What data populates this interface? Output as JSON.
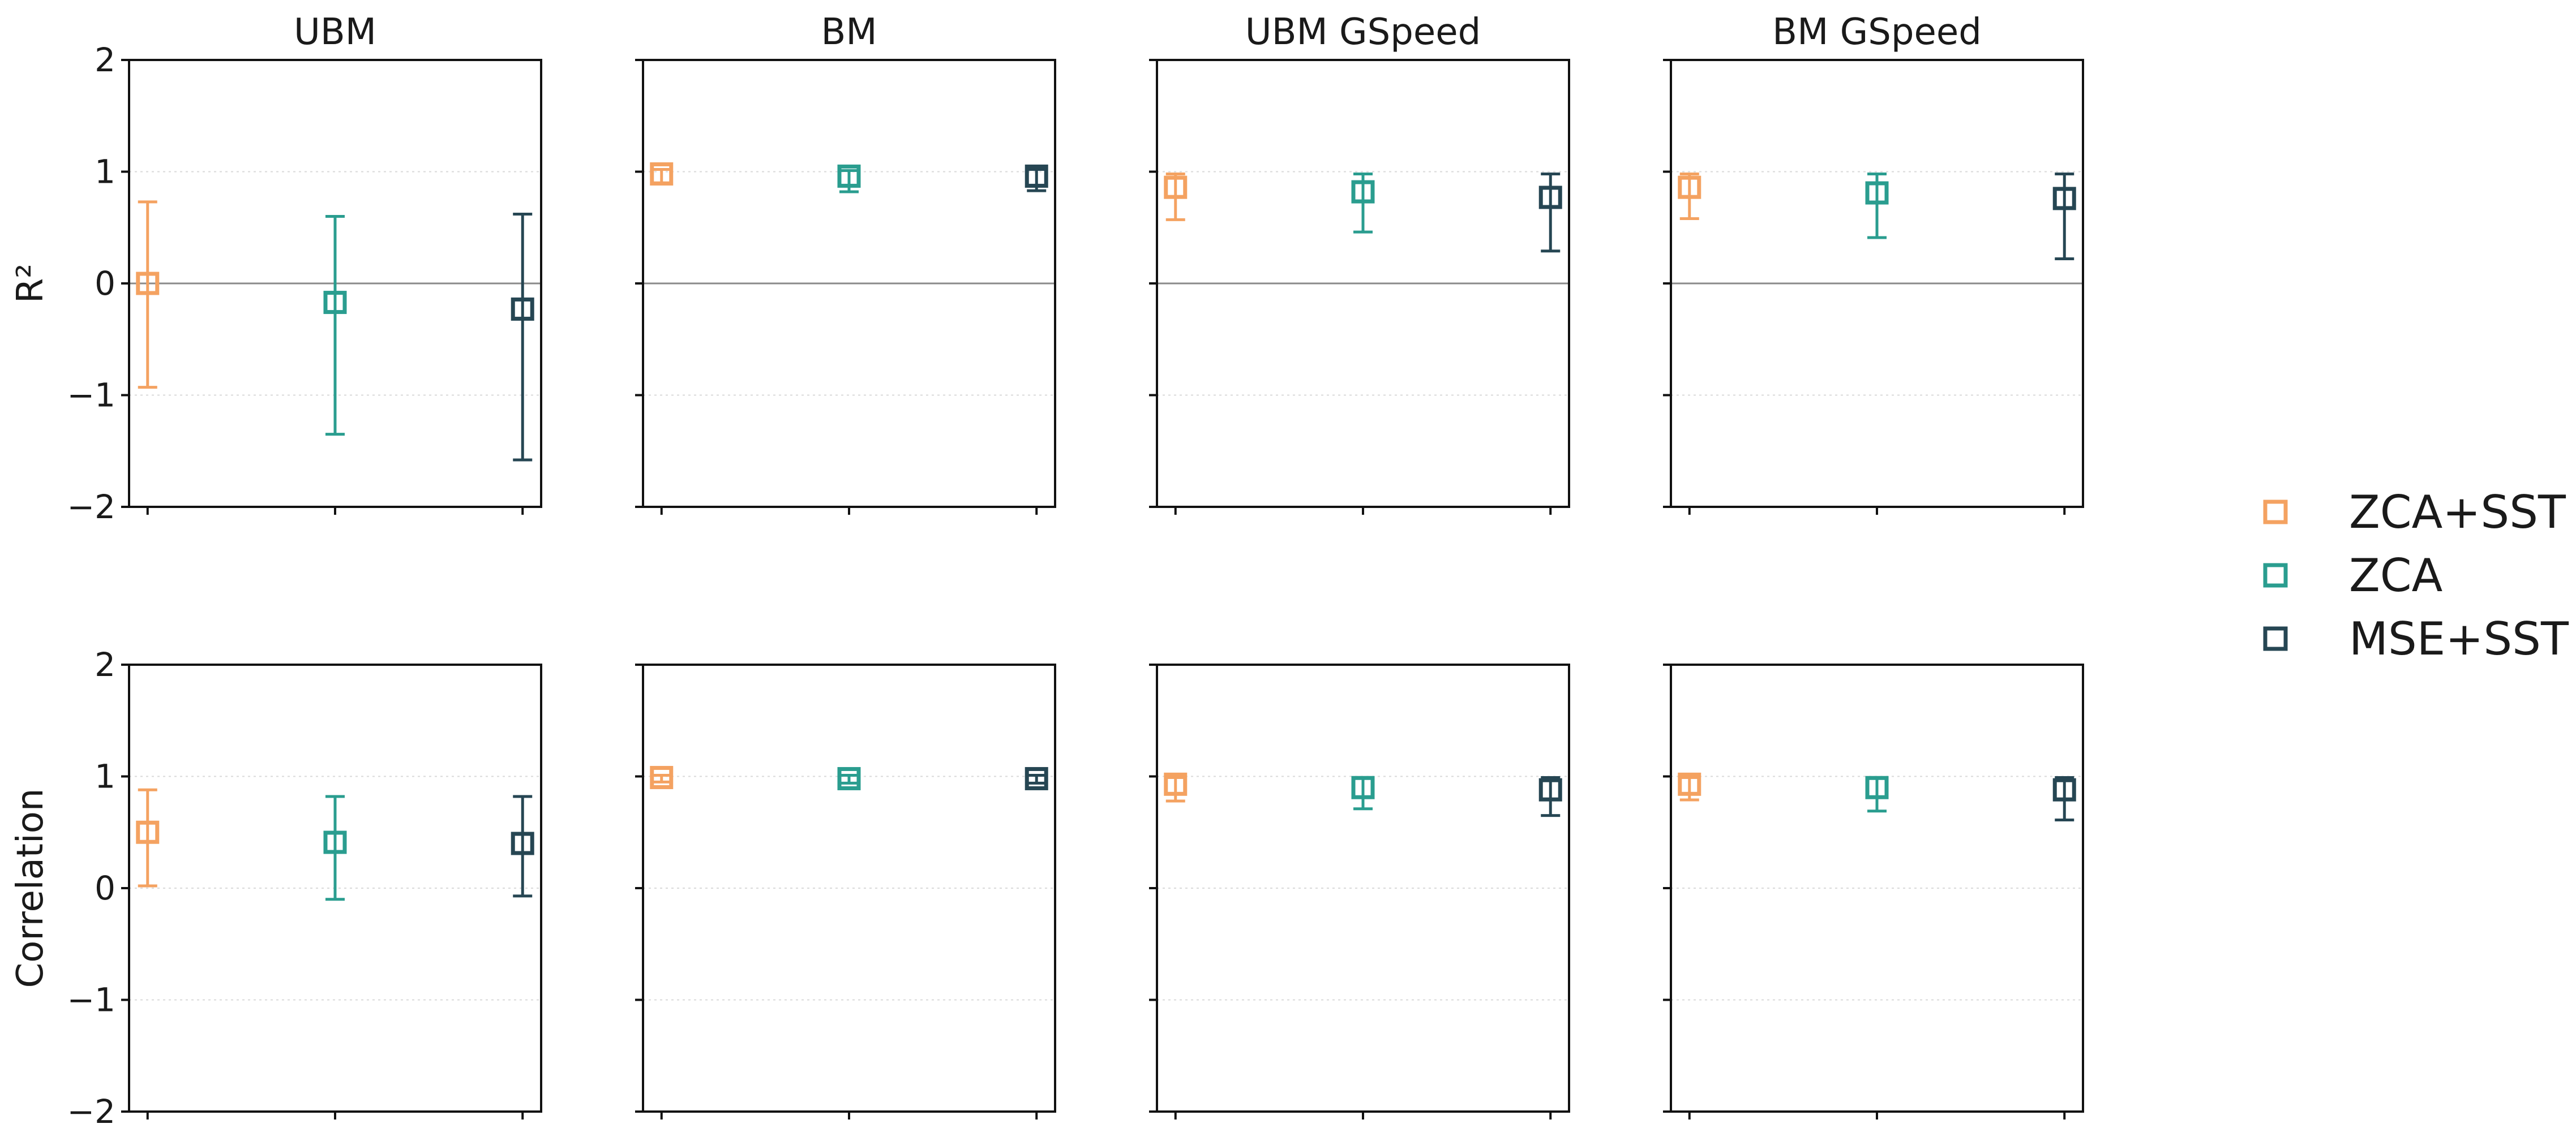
{
  "chart_data": {
    "type": "scatter",
    "panel_titles": [
      "UBM",
      "BM",
      "UBM GSpeed",
      "BM GSpeed"
    ],
    "row_ylabels": [
      "R²",
      "Correlation"
    ],
    "yticks": [
      -2,
      -1,
      0,
      1,
      2
    ],
    "ylim": [
      -2,
      2
    ],
    "grid": true,
    "xtick_labels": false,
    "legend_placement": "right",
    "series": [
      {
        "name": "ZCA+SST",
        "color": "#f4a261",
        "marker": "open-square"
      },
      {
        "name": "ZCA",
        "color": "#2a9d8f",
        "marker": "open-square"
      },
      {
        "name": "MSE+SST",
        "color": "#264653",
        "marker": "open-square"
      }
    ],
    "panels": [
      {
        "row": 0,
        "col": 0,
        "points": [
          {
            "series": "ZCA+SST",
            "value": 0.0,
            "low": -0.93,
            "high": 0.73
          },
          {
            "series": "ZCA",
            "value": -0.17,
            "low": -1.35,
            "high": 0.6
          },
          {
            "series": "MSE+SST",
            "value": -0.23,
            "low": -1.58,
            "high": 0.62
          }
        ]
      },
      {
        "row": 0,
        "col": 1,
        "points": [
          {
            "series": "ZCA+SST",
            "value": 0.98,
            "low": 0.9,
            "high": 1.02
          },
          {
            "series": "ZCA",
            "value": 0.96,
            "low": 0.82,
            "high": 1.01
          },
          {
            "series": "MSE+SST",
            "value": 0.96,
            "low": 0.83,
            "high": 1.02
          }
        ]
      },
      {
        "row": 0,
        "col": 2,
        "points": [
          {
            "series": "ZCA+SST",
            "value": 0.86,
            "low": 0.57,
            "high": 0.98
          },
          {
            "series": "ZCA",
            "value": 0.82,
            "low": 0.46,
            "high": 0.98
          },
          {
            "series": "MSE+SST",
            "value": 0.77,
            "low": 0.29,
            "high": 0.98
          }
        ]
      },
      {
        "row": 0,
        "col": 3,
        "points": [
          {
            "series": "ZCA+SST",
            "value": 0.86,
            "low": 0.58,
            "high": 0.98
          },
          {
            "series": "ZCA",
            "value": 0.81,
            "low": 0.41,
            "high": 0.98
          },
          {
            "series": "MSE+SST",
            "value": 0.76,
            "low": 0.22,
            "high": 0.98
          }
        ]
      },
      {
        "row": 1,
        "col": 0,
        "points": [
          {
            "series": "ZCA+SST",
            "value": 0.5,
            "low": 0.02,
            "high": 0.88
          },
          {
            "series": "ZCA",
            "value": 0.41,
            "low": -0.1,
            "high": 0.82
          },
          {
            "series": "MSE+SST",
            "value": 0.4,
            "low": -0.07,
            "high": 0.82
          }
        ]
      },
      {
        "row": 1,
        "col": 1,
        "points": [
          {
            "series": "ZCA+SST",
            "value": 0.99,
            "low": 0.95,
            "high": 1.01
          },
          {
            "series": "ZCA",
            "value": 0.98,
            "low": 0.94,
            "high": 1.01
          },
          {
            "series": "MSE+SST",
            "value": 0.98,
            "low": 0.94,
            "high": 1.01
          }
        ]
      },
      {
        "row": 1,
        "col": 2,
        "points": [
          {
            "series": "ZCA+SST",
            "value": 0.93,
            "low": 0.78,
            "high": 0.99
          },
          {
            "series": "ZCA",
            "value": 0.9,
            "low": 0.71,
            "high": 0.99
          },
          {
            "series": "MSE+SST",
            "value": 0.88,
            "low": 0.65,
            "high": 0.99
          }
        ]
      },
      {
        "row": 1,
        "col": 3,
        "points": [
          {
            "series": "ZCA+SST",
            "value": 0.93,
            "low": 0.79,
            "high": 0.99
          },
          {
            "series": "ZCA",
            "value": 0.9,
            "low": 0.69,
            "high": 0.99
          },
          {
            "series": "MSE+SST",
            "value": 0.88,
            "low": 0.61,
            "high": 0.99
          }
        ]
      }
    ]
  }
}
